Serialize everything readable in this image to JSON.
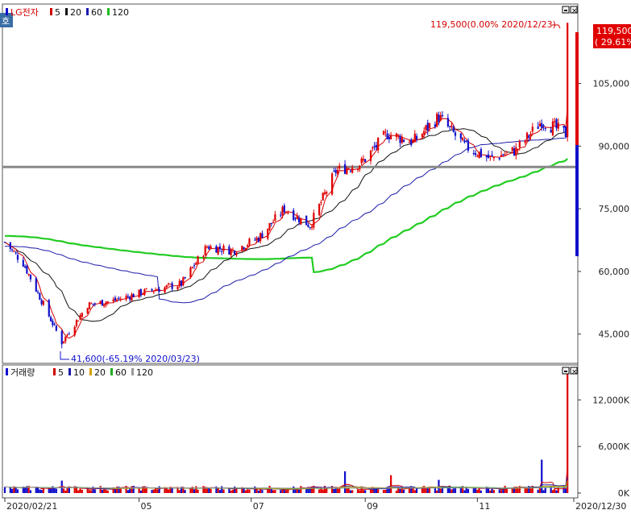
{
  "header": {
    "corner_badge": "호",
    "price_title": "LG전자",
    "price_legend": [
      {
        "label": "5",
        "color": "#d40000"
      },
      {
        "label": "20",
        "color": "#111111"
      },
      {
        "label": "60",
        "color": "#1a1aaa"
      },
      {
        "label": "120",
        "color": "#22bb22"
      }
    ],
    "volume_title": "거래량",
    "volume_legend": [
      {
        "label": "5",
        "color": "#d40000"
      },
      {
        "label": "10",
        "color": "#1a1aaa"
      },
      {
        "label": "20",
        "color": "#d4a000"
      },
      {
        "label": "60",
        "color": "#22aa22"
      },
      {
        "label": "120",
        "color": "#999999"
      }
    ]
  },
  "annotations": {
    "high": "119,500(0.00% 2020/12/23)",
    "low": "41,600(-65.19% 2020/03/23)",
    "last_price": "119,500",
    "last_change": "( 29.61%)"
  },
  "colors": {
    "up": "#e00000",
    "down": "#1010cc",
    "ma5": "#d40000",
    "ma20": "#111111",
    "ma60": "#1a1aaa",
    "ma120": "#22cc22",
    "hline": "#888888"
  },
  "chart_data": [
    {
      "type": "candlestick",
      "title": "LG전자",
      "x_start": "2020/02/21",
      "x_end": "2020/12/30",
      "x_ticks": [
        "2020/02/21",
        "05",
        "07",
        "09",
        "11",
        "2020/12/30"
      ],
      "y_ticks": [
        "45,000",
        "60,000",
        "75,000",
        "90,000",
        "105,000"
      ],
      "ylim": [
        38000,
        124000
      ],
      "reference_line": 85000,
      "anchor_points": [
        {
          "date": "2020/02/21",
          "close": 67000
        },
        {
          "date": "2020/03/02",
          "close": 62000
        },
        {
          "date": "2020/03/12",
          "close": 53000
        },
        {
          "date": "2020/03/23",
          "close": 43000,
          "low": 41600
        },
        {
          "date": "2020/04/06",
          "close": 52000
        },
        {
          "date": "2020/04/20",
          "close": 53000
        },
        {
          "date": "2020/05/06",
          "close": 55000
        },
        {
          "date": "2020/05/27",
          "close": 57000
        },
        {
          "date": "2020/06/10",
          "close": 66000
        },
        {
          "date": "2020/06/24",
          "close": 65000
        },
        {
          "date": "2020/07/08",
          "close": 68000
        },
        {
          "date": "2020/07/22",
          "close": 75000
        },
        {
          "date": "2020/08/05",
          "close": 71000
        },
        {
          "date": "2020/08/19",
          "close": 84000
        },
        {
          "date": "2020/09/02",
          "close": 86000
        },
        {
          "date": "2020/09/16",
          "close": 93000
        },
        {
          "date": "2020/09/30",
          "close": 91000
        },
        {
          "date": "2020/10/14",
          "close": 97000
        },
        {
          "date": "2020/10/28",
          "close": 90000
        },
        {
          "date": "2020/11/11",
          "close": 87000
        },
        {
          "date": "2020/11/25",
          "close": 89000
        },
        {
          "date": "2020/12/09",
          "close": 96000
        },
        {
          "date": "2020/12/22",
          "close": 93000
        },
        {
          "date": "2020/12/23",
          "close": 119500,
          "high": 119500
        }
      ],
      "series": [
        {
          "name": "5"
        },
        {
          "name": "20"
        },
        {
          "name": "60"
        },
        {
          "name": "120"
        }
      ]
    },
    {
      "type": "bar",
      "title": "거래량",
      "y_ticks": [
        "0K",
        "6,000K",
        "12,000K"
      ],
      "ylim": [
        0,
        16500
      ],
      "typical_volume_k": 700,
      "spikes": [
        {
          "date": "2020/03/23",
          "volume_k": 1600
        },
        {
          "date": "2020/08/24",
          "volume_k": 2800
        },
        {
          "date": "2020/09/18",
          "volume_k": 2300
        },
        {
          "date": "2020/10/14",
          "volume_k": 1700
        },
        {
          "date": "2020/12/09",
          "volume_k": 4300
        },
        {
          "date": "2020/12/23",
          "volume_k": 15500
        }
      ],
      "series": [
        {
          "name": "5"
        },
        {
          "name": "10"
        },
        {
          "name": "20"
        },
        {
          "name": "60"
        },
        {
          "name": "120"
        }
      ]
    }
  ]
}
